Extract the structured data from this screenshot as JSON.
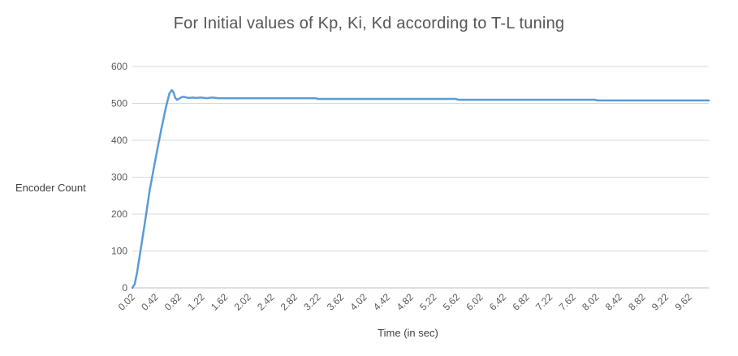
{
  "chart_data": {
    "type": "line",
    "title": "For Initial values of Kp, Ki, Kd according to T-L tuning",
    "xlabel": "Time (in sec)",
    "ylabel": "Encoder Count",
    "ylim": [
      0,
      600
    ],
    "yticks": [
      0,
      100,
      200,
      300,
      400,
      500,
      600
    ],
    "xlim": [
      0.02,
      9.96
    ],
    "xticks": [
      "0.02",
      "0.42",
      "0.82",
      "1.22",
      "1.62",
      "2.02",
      "2.42",
      "2.82",
      "3.22",
      "3.62",
      "4.02",
      "4.42",
      "4.82",
      "5.22",
      "5.62",
      "6.02",
      "6.42",
      "6.82",
      "7.22",
      "7.62",
      "8.02",
      "8.42",
      "8.82",
      "9.22",
      "9.62"
    ],
    "grid": true,
    "legend": "none",
    "line_color": "#5b9bd5",
    "series": [
      {
        "x": [
          0.02,
          0.06,
          0.1,
          0.16,
          0.24,
          0.32,
          0.42,
          0.52,
          0.6,
          0.66,
          0.7,
          0.73,
          0.76,
          0.79,
          0.82,
          0.86,
          0.9,
          0.95,
          1.0,
          1.06,
          1.12,
          1.2,
          1.3,
          1.4,
          1.5,
          1.62,
          2.0,
          2.5,
          3.0,
          3.18,
          3.22,
          4.0,
          5.0,
          5.6,
          5.64,
          6.5,
          7.0,
          7.6,
          8.0,
          8.04,
          9.0,
          9.96
        ],
        "y": [
          0,
          10,
          40,
          100,
          180,
          265,
          350,
          430,
          490,
          527,
          536,
          530,
          515,
          510,
          512,
          516,
          518,
          516,
          515,
          516,
          515,
          516,
          514,
          516,
          514,
          514,
          514,
          514,
          514,
          514,
          512,
          512,
          512,
          512,
          510,
          510,
          510,
          510,
          510,
          508,
          508,
          508
        ]
      }
    ]
  }
}
